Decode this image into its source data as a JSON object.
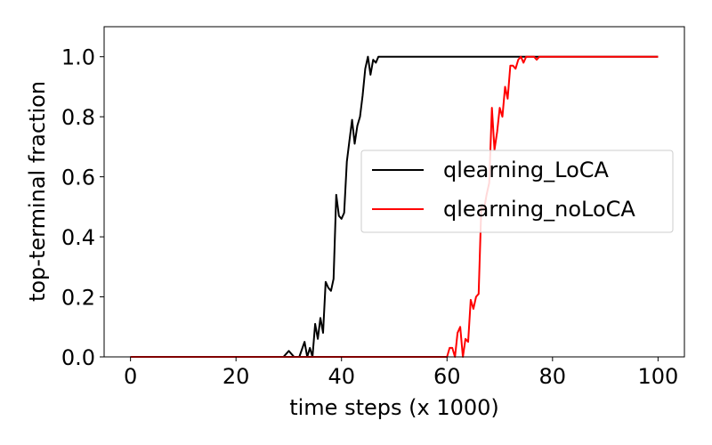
{
  "chart_data": {
    "type": "line",
    "title": "",
    "xlabel": "time steps (x 1000)",
    "ylabel": "top-terminal fraction",
    "xlim": [
      -5,
      105
    ],
    "ylim": [
      0.0,
      1.1
    ],
    "xticks": [
      0,
      20,
      40,
      60,
      80,
      100
    ],
    "xtick_labels": [
      "0",
      "20",
      "40",
      "60",
      "80",
      "100"
    ],
    "yticks": [
      0.0,
      0.2,
      0.4,
      0.6,
      0.8,
      1.0
    ],
    "ytick_labels": [
      "0.0",
      "0.2",
      "0.4",
      "0.6",
      "0.8",
      "1.0"
    ],
    "grid": false,
    "legend_position": "center-right",
    "series": [
      {
        "name": "qlearning_LoCA",
        "color": "#000000",
        "x": [
          0,
          29,
          30,
          31,
          32,
          33,
          33.5,
          34,
          34.5,
          35,
          35.5,
          36,
          36.5,
          37,
          37.5,
          38,
          38.5,
          39,
          39.5,
          40,
          40.5,
          41,
          41.5,
          42,
          42.5,
          43,
          43.5,
          44,
          44.5,
          45,
          45.5,
          46,
          46.5,
          47,
          48,
          100
        ],
        "y": [
          0.0,
          0.0,
          0.02,
          0.0,
          0.0,
          0.05,
          0.0,
          0.03,
          0.0,
          0.11,
          0.06,
          0.13,
          0.08,
          0.25,
          0.23,
          0.22,
          0.26,
          0.54,
          0.47,
          0.46,
          0.48,
          0.65,
          0.72,
          0.79,
          0.71,
          0.77,
          0.8,
          0.87,
          0.96,
          1.0,
          0.94,
          0.99,
          0.98,
          1.0,
          1.0,
          1.0
        ]
      },
      {
        "name": "qlearning_noLoCA",
        "color": "#ff0000",
        "x": [
          0,
          60,
          60.5,
          61,
          61.5,
          62,
          62.5,
          63,
          63.5,
          64,
          64.5,
          65,
          65.5,
          66,
          66.5,
          67,
          67.5,
          68,
          68.5,
          69,
          69.5,
          70,
          70.5,
          71,
          71.5,
          72,
          72.5,
          73,
          73.5,
          74,
          74.5,
          75,
          75.5,
          76,
          76.5,
          77,
          77.5,
          78,
          79,
          100
        ],
        "y": [
          0.0,
          0.0,
          0.03,
          0.03,
          0.0,
          0.08,
          0.1,
          0.0,
          0.06,
          0.05,
          0.19,
          0.16,
          0.2,
          0.21,
          0.5,
          0.49,
          0.54,
          0.58,
          0.83,
          0.69,
          0.75,
          0.83,
          0.8,
          0.9,
          0.86,
          0.97,
          0.97,
          0.96,
          0.99,
          1.0,
          0.98,
          1.0,
          1.0,
          1.0,
          1.0,
          0.99,
          1.0,
          1.0,
          1.0,
          1.0
        ]
      }
    ]
  }
}
